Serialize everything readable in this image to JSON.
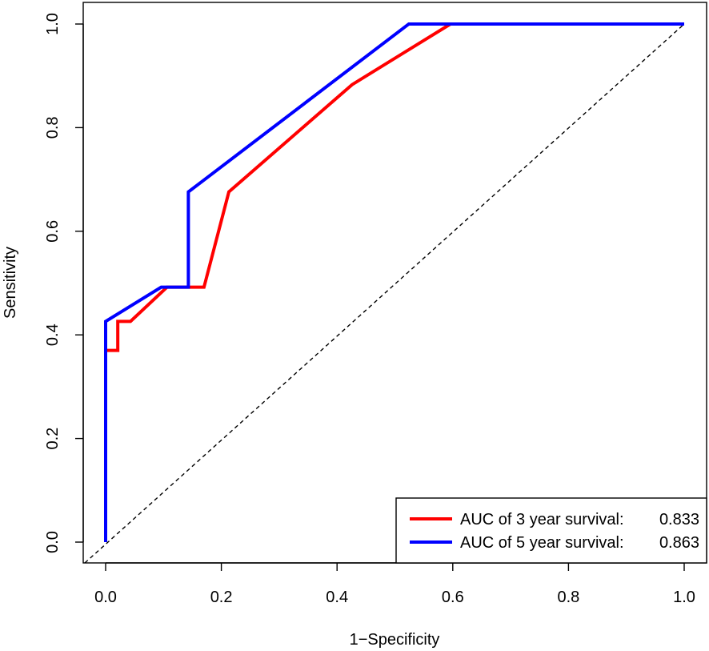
{
  "chart_data": {
    "type": "line",
    "title": "",
    "xlabel": "1−Specificity",
    "ylabel": "Sensitivity",
    "xlim": [
      0.0,
      1.0
    ],
    "ylim": [
      0.0,
      1.0
    ],
    "x_ticks": [
      "0.0",
      "0.2",
      "0.4",
      "0.6",
      "0.8",
      "1.0"
    ],
    "y_ticks": [
      "0.0",
      "0.2",
      "0.4",
      "0.6",
      "0.8",
      "1.0"
    ],
    "grid": false,
    "legend_position": "bottom-right",
    "reference_line": {
      "name": "diagonal",
      "style": "dashed",
      "color": "#000000",
      "x": [
        0.0,
        1.0
      ],
      "y": [
        0.0,
        1.0
      ]
    },
    "series": [
      {
        "name": "AUC of 3 year survival",
        "legend_label": "AUC of 3 year survival:",
        "auc_label": "0.833",
        "color": "#ff0000",
        "x": [
          0.0,
          0.0,
          0.021,
          0.021,
          0.043,
          0.106,
          0.17,
          0.213,
          0.426,
          0.596,
          1.0
        ],
        "y": [
          0.0,
          0.37,
          0.37,
          0.426,
          0.426,
          0.492,
          0.492,
          0.676,
          0.883,
          1.0,
          1.0
        ]
      },
      {
        "name": "AUC of 5 year survival",
        "legend_label": "AUC of 5 year survival:",
        "auc_label": "0.863",
        "color": "#0000ff",
        "x": [
          0.0,
          0.0,
          0.096,
          0.143,
          0.143,
          0.524,
          1.0
        ],
        "y": [
          0.0,
          0.426,
          0.492,
          0.492,
          0.676,
          1.0,
          1.0
        ]
      }
    ]
  }
}
